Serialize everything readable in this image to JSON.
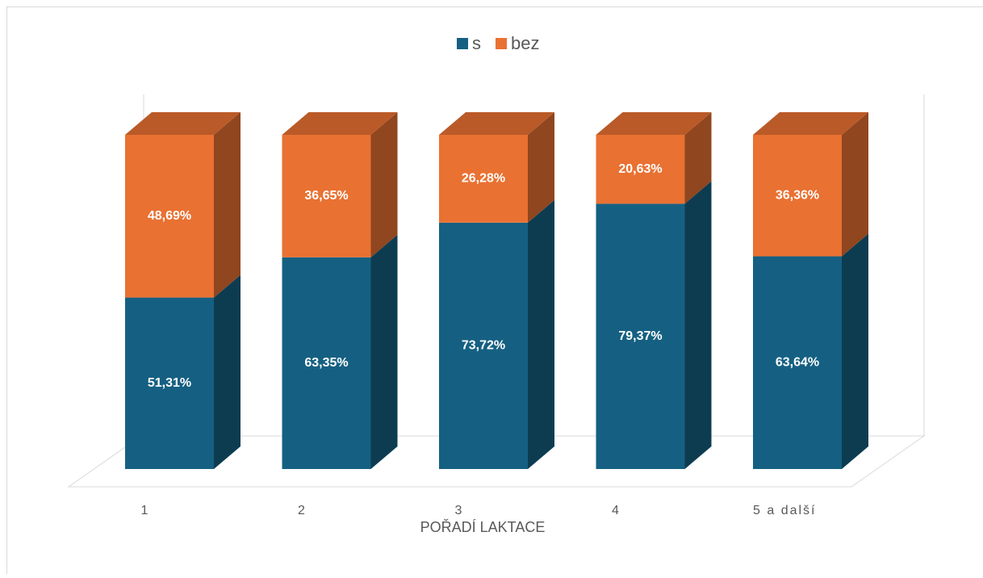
{
  "chart_data": {
    "type": "bar",
    "stacked": true,
    "x_label": "POŘADÍ LAKTACE",
    "categories": [
      "1",
      "2",
      "3",
      "4",
      "5 a další"
    ],
    "series": [
      {
        "name": "s",
        "color": "#156082",
        "values": [
          51.31,
          63.35,
          73.72,
          79.37,
          63.64
        ],
        "value_labels": [
          "51,31%",
          "63,35%",
          "73,72%",
          "79,37%",
          "63,64%"
        ]
      },
      {
        "name": "bez",
        "color": "#e97132",
        "values": [
          48.69,
          36.65,
          26.28,
          20.63,
          36.36
        ],
        "value_labels": [
          "48,69%",
          "36,65%",
          "26,28%",
          "20,63%",
          "36,36%"
        ]
      }
    ],
    "legend": "top"
  }
}
